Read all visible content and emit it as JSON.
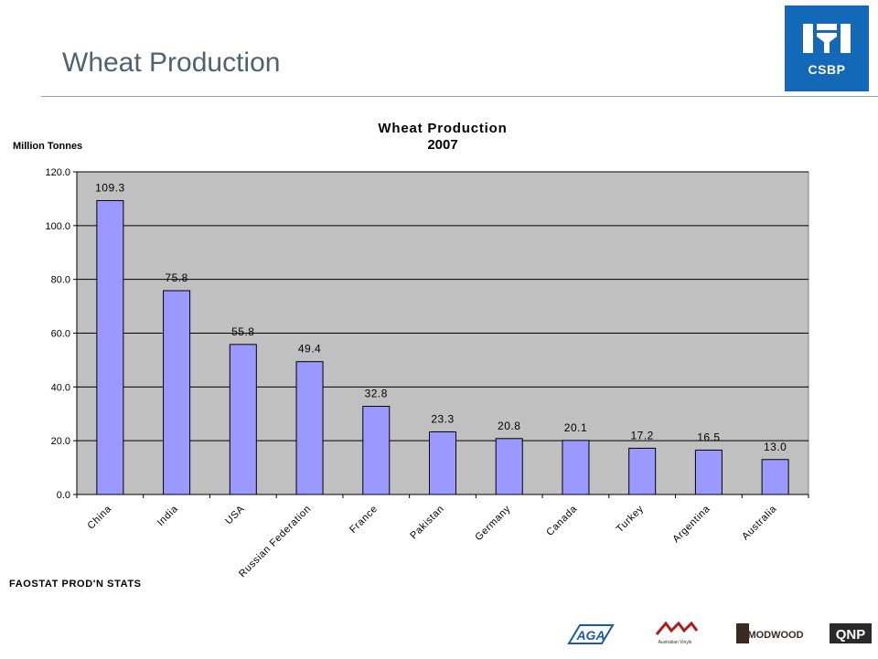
{
  "slide": {
    "title": "Wheat Production",
    "brand_logo": "CSBP",
    "source_note": "FAOSTAT PROD'N STATS",
    "footer_logos": [
      "AGA",
      "Australian Vinyls",
      "MODWOOD",
      "QNP"
    ]
  },
  "colors": {
    "title": "#4f6272",
    "rule": "#8da2b5",
    "logo_bg": "#1368b8",
    "plot_bg": "#c0c0c0",
    "bar_fill": "#9999ff"
  },
  "chart_data": {
    "type": "bar",
    "title": "Wheat Production",
    "subtitle": "2007",
    "ylabel": "Million Tonnes",
    "xlabel": "",
    "categories": [
      "China",
      "India",
      "USA",
      "Russian Federation",
      "France",
      "Pakistan",
      "Germany",
      "Canada",
      "Turkey",
      "Argentina",
      "Australia"
    ],
    "values": [
      109.3,
      75.8,
      55.8,
      49.4,
      32.8,
      23.3,
      20.8,
      20.1,
      17.2,
      16.5,
      13.0
    ],
    "data_labels": [
      "109.3",
      "75.8",
      "55.8",
      "49.4",
      "32.8",
      "23.3",
      "20.8",
      "20.1",
      "17.2",
      "16.5",
      "13.0"
    ],
    "ylim": [
      0,
      120
    ],
    "yticks": [
      "0.0",
      "20.0",
      "40.0",
      "60.0",
      "80.0",
      "100.0",
      "120.0"
    ],
    "grid": true,
    "legend": "none"
  }
}
